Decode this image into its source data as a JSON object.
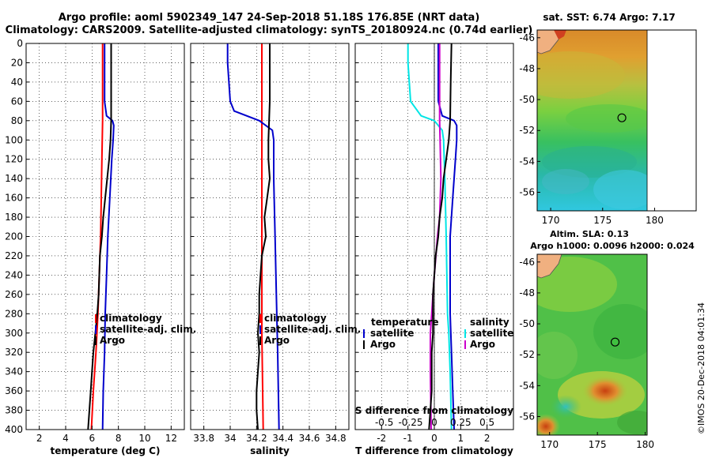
{
  "title": {
    "line1": "Argo profile: aoml 5902349_147 24-Sep-2018 51.18S 176.85E (NRT data)",
    "line2": "Climatology: CARS2009. Satellite-adjusted climatology: synTS_20180924.nc (0.74d earlier)"
  },
  "colors": {
    "climatology": "#ff0000",
    "satellite": "#0000cc",
    "argo": "#000000",
    "salinity_sat": "#00e5e5",
    "salinity_argo": "#cc00cc"
  },
  "chart_data": [
    {
      "type": "line",
      "id": "temperature",
      "title": "",
      "xlabel": "temperature (deg C)",
      "ylabel": "",
      "xlim": [
        1,
        13
      ],
      "ylim": [
        400,
        0
      ],
      "xticks": [
        2,
        4,
        6,
        8,
        10,
        12
      ],
      "yticks": [
        0,
        20,
        40,
        60,
        80,
        100,
        120,
        140,
        160,
        180,
        200,
        220,
        240,
        260,
        280,
        300,
        320,
        340,
        360,
        380,
        400
      ],
      "grid": true,
      "legend": [
        "climatology",
        "satellite-adj. clim.",
        "Argo"
      ],
      "series": [
        {
          "name": "climatology",
          "color": "#ff0000",
          "depth": [
            0,
            40,
            80,
            120,
            160,
            200,
            240,
            280,
            320,
            360,
            400
          ],
          "values": [
            6.8,
            6.8,
            6.8,
            6.75,
            6.7,
            6.65,
            6.55,
            6.45,
            6.3,
            6.1,
            5.95
          ]
        },
        {
          "name": "satellite-adj. clim.",
          "color": "#0000cc",
          "depth": [
            0,
            60,
            75,
            80,
            85,
            100,
            120,
            160,
            200,
            240,
            280,
            320,
            360,
            400
          ],
          "values": [
            6.95,
            6.95,
            7.1,
            7.55,
            7.65,
            7.6,
            7.5,
            7.35,
            7.2,
            7.1,
            7.0,
            6.95,
            6.85,
            6.8
          ]
        },
        {
          "name": "Argo",
          "color": "#000000",
          "depth": [
            0,
            40,
            80,
            100,
            120,
            140,
            160,
            180,
            200,
            220,
            240,
            260,
            280,
            300,
            320,
            340,
            360,
            380,
            400
          ],
          "values": [
            7.45,
            7.45,
            7.45,
            7.4,
            7.3,
            7.15,
            7.0,
            6.85,
            6.75,
            6.6,
            6.55,
            6.5,
            6.4,
            6.25,
            6.1,
            6.0,
            5.9,
            5.8,
            5.7
          ]
        }
      ]
    },
    {
      "type": "line",
      "id": "salinity",
      "xlabel": "salinity",
      "xlim": [
        33.7,
        34.9
      ],
      "ylim": [
        400,
        0
      ],
      "xticks": [
        33.8,
        34,
        34.2,
        34.4,
        34.6,
        34.8
      ],
      "xticklabels": [
        "33.8",
        "34",
        "34.2",
        "34.4",
        "34.6",
        "34.8"
      ],
      "grid": true,
      "legend": [
        "climatology",
        "satellite-adj. clim.",
        "Argo"
      ],
      "series": [
        {
          "name": "climatology",
          "color": "#ff0000",
          "depth": [
            0,
            100,
            200,
            300,
            400
          ],
          "values": [
            34.24,
            34.24,
            34.24,
            34.24,
            34.25
          ]
        },
        {
          "name": "satellite-adj. clim.",
          "color": "#0000cc",
          "depth": [
            0,
            20,
            60,
            70,
            80,
            90,
            100,
            140,
            200,
            260,
            320,
            400
          ],
          "values": [
            33.98,
            33.98,
            34.0,
            34.03,
            34.22,
            34.32,
            34.33,
            34.33,
            34.34,
            34.35,
            34.36,
            34.37
          ]
        },
        {
          "name": "Argo",
          "color": "#000000",
          "depth": [
            0,
            60,
            100,
            120,
            140,
            160,
            180,
            200,
            220,
            240,
            260,
            280,
            300,
            320,
            340,
            360,
            380,
            400
          ],
          "values": [
            34.3,
            34.3,
            34.29,
            34.29,
            34.3,
            34.28,
            34.26,
            34.27,
            34.24,
            34.23,
            34.22,
            34.22,
            34.21,
            34.22,
            34.21,
            34.2,
            34.2,
            34.21
          ]
        }
      ]
    },
    {
      "type": "line",
      "id": "difference",
      "xlabel": "T difference from climatology",
      "xlabel_top": "S difference from climatology",
      "xlim": [
        -3,
        3
      ],
      "ylim": [
        400,
        0
      ],
      "xticks": [
        -2,
        -1,
        0,
        1,
        2
      ],
      "top_ticklabels": [
        {
          "x": -1.9,
          "label": "-0.5"
        },
        {
          "x": -0.9,
          "label": "-0.25"
        },
        {
          "x": 0,
          "label": "0"
        },
        {
          "x": 1.0,
          "label": "0.25"
        },
        {
          "x": 2.0,
          "label": "0.5"
        }
      ],
      "grid": true,
      "legend_left_title": "temperature",
      "legend_left": [
        "satellite",
        "Argo"
      ],
      "legend_right_title": "salinity",
      "legend_right": [
        "satellite",
        "Argo"
      ],
      "series": [
        {
          "name": "S satellite",
          "color": "#00e5e5",
          "depth": [
            0,
            20,
            60,
            75,
            80,
            90,
            100,
            140,
            200,
            280,
            300,
            340,
            400
          ],
          "values": [
            -1.0,
            -1.0,
            -0.9,
            -0.5,
            0.0,
            0.3,
            0.35,
            0.4,
            0.45,
            0.5,
            0.55,
            0.6,
            0.65
          ]
        },
        {
          "name": "T satellite",
          "color": "#0000cc",
          "depth": [
            0,
            60,
            75,
            80,
            85,
            100,
            120,
            160,
            200,
            240,
            280,
            320,
            360,
            400
          ],
          "values": [
            0.15,
            0.15,
            0.3,
            0.75,
            0.85,
            0.85,
            0.8,
            0.7,
            0.6,
            0.6,
            0.6,
            0.65,
            0.7,
            0.75
          ]
        },
        {
          "name": "S Argo",
          "color": "#cc00cc",
          "depth": [
            0,
            40,
            80,
            100,
            140,
            180,
            200,
            240,
            260,
            280,
            300,
            340,
            400
          ],
          "values": [
            0.2,
            0.2,
            0.2,
            0.22,
            0.25,
            0.2,
            0.12,
            0.0,
            -0.05,
            -0.1,
            -0.15,
            -0.15,
            -0.12
          ]
        },
        {
          "name": "T Argo",
          "color": "#000000",
          "depth": [
            0,
            40,
            80,
            100,
            120,
            140,
            160,
            180,
            200,
            220,
            240,
            260,
            280,
            300,
            320,
            340,
            360,
            380,
            400
          ],
          "values": [
            0.65,
            0.62,
            0.6,
            0.55,
            0.45,
            0.35,
            0.3,
            0.2,
            0.15,
            0.05,
            0.0,
            -0.05,
            -0.05,
            -0.05,
            -0.1,
            -0.1,
            -0.1,
            -0.15,
            -0.2
          ]
        }
      ]
    },
    {
      "type": "heatmap",
      "id": "sst-map",
      "title": "sat. SST: 6.74 Argo: 7.17",
      "xticks": [
        170,
        175,
        180
      ],
      "yticks": [
        -46,
        -48,
        -50,
        -52,
        -54,
        -56
      ],
      "xlim": [
        168.7,
        184
      ],
      "ylim": [
        -57.2,
        -45.5
      ],
      "argo_position": {
        "lon": 176.85,
        "lat": -51.18
      }
    },
    {
      "type": "heatmap",
      "id": "sla-map",
      "title_line1": "Altim. SLA: 0.13",
      "title_line2": "Argo h1000: 0.0096 h2000: 0.024",
      "xticks": [
        170,
        175,
        180
      ],
      "yticks": [
        -46,
        -48,
        -50,
        -52,
        -54,
        -56
      ],
      "xlim": [
        168.7,
        180.2
      ],
      "ylim": [
        -57.2,
        -45.5
      ],
      "argo_position": {
        "lon": 176.85,
        "lat": -51.18
      }
    }
  ],
  "watermark": "©IMOS 20-Dec-2018 04:01:34"
}
